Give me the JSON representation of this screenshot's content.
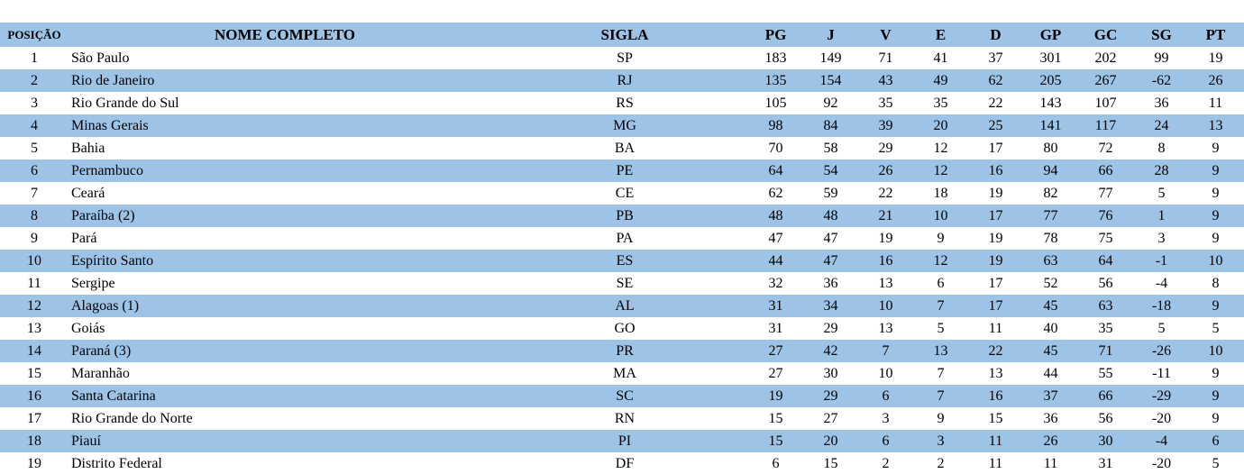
{
  "table": {
    "header": [
      "POSIÇÃO",
      "NOME COMPLETO",
      "SIGLA",
      "PG",
      "J",
      "V",
      "E",
      "D",
      "GP",
      "GC",
      "SG",
      "PT"
    ],
    "rows": [
      [
        1,
        "São Paulo",
        "SP",
        183,
        149,
        71,
        41,
        37,
        301,
        202,
        99,
        19
      ],
      [
        2,
        "Rio de Janeiro",
        "RJ",
        135,
        154,
        43,
        49,
        62,
        205,
        267,
        -62,
        26
      ],
      [
        3,
        "Rio Grande do Sul",
        "RS",
        105,
        92,
        35,
        35,
        22,
        143,
        107,
        36,
        11
      ],
      [
        4,
        "Minas Gerais",
        "MG",
        98,
        84,
        39,
        20,
        25,
        141,
        117,
        24,
        13
      ],
      [
        5,
        "Bahia",
        "BA",
        70,
        58,
        29,
        12,
        17,
        80,
        72,
        8,
        9
      ],
      [
        6,
        "Pernambuco",
        "PE",
        64,
        54,
        26,
        12,
        16,
        94,
        66,
        28,
        9
      ],
      [
        7,
        "Ceará",
        "CE",
        62,
        59,
        22,
        18,
        19,
        82,
        77,
        5,
        9
      ],
      [
        8,
        "Paraíba (2)",
        "PB",
        48,
        48,
        21,
        10,
        17,
        77,
        76,
        1,
        9
      ],
      [
        9,
        "Pará",
        "PA",
        47,
        47,
        19,
        9,
        19,
        78,
        75,
        3,
        9
      ],
      [
        10,
        "Espírito Santo",
        "ES",
        44,
        47,
        16,
        12,
        19,
        63,
        64,
        -1,
        10
      ],
      [
        11,
        "Sergipe",
        "SE",
        32,
        36,
        13,
        6,
        17,
        52,
        56,
        -4,
        8
      ],
      [
        12,
        "Alagoas (1)",
        "AL",
        31,
        34,
        10,
        7,
        17,
        45,
        63,
        -18,
        9
      ],
      [
        13,
        "Goiás",
        "GO",
        31,
        29,
        13,
        5,
        11,
        40,
        35,
        5,
        5
      ],
      [
        14,
        "Paraná (3)",
        "PR",
        27,
        42,
        7,
        13,
        22,
        45,
        71,
        -26,
        10
      ],
      [
        15,
        "Maranhão",
        "MA",
        27,
        30,
        10,
        7,
        13,
        44,
        55,
        -11,
        9
      ],
      [
        16,
        "Santa Catarina",
        "SC",
        19,
        29,
        6,
        7,
        16,
        37,
        66,
        -29,
        9
      ],
      [
        17,
        "Rio Grande do Norte",
        "RN",
        15,
        27,
        3,
        9,
        15,
        36,
        56,
        -20,
        9
      ],
      [
        18,
        "Piauí",
        "PI",
        15,
        20,
        6,
        3,
        11,
        26,
        30,
        -4,
        6
      ],
      [
        19,
        "Distrito Federal",
        "DF",
        6,
        15,
        2,
        2,
        11,
        11,
        31,
        -20,
        5
      ]
    ]
  }
}
